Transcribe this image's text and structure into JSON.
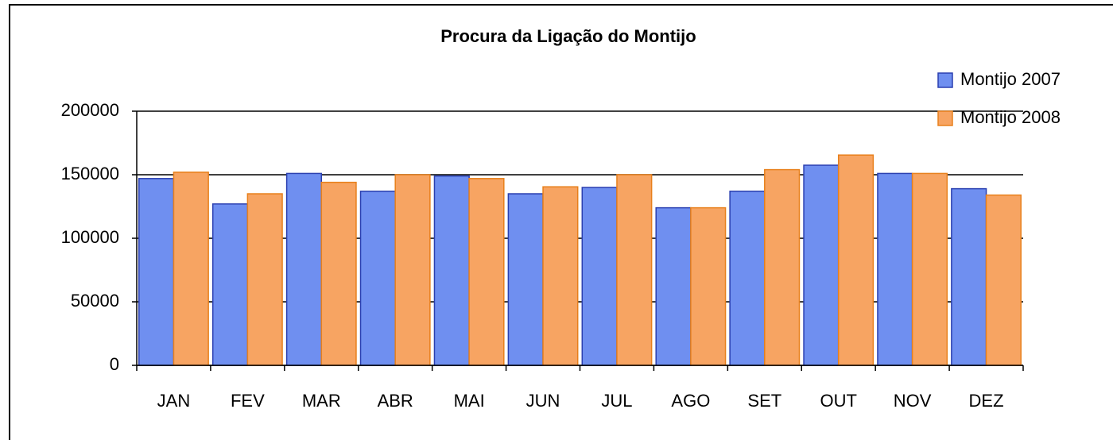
{
  "chart_data": {
    "type": "bar",
    "title": "Procura da Ligação do Montijo",
    "categories": [
      "JAN",
      "FEV",
      "MAR",
      "ABR",
      "MAI",
      "JUN",
      "JUL",
      "AGO",
      "SET",
      "OUT",
      "NOV",
      "DEZ"
    ],
    "series": [
      {
        "name": "Montijo 2007",
        "color": "#6f8ff0",
        "values": [
          147000,
          127000,
          151000,
          137000,
          149000,
          135000,
          140000,
          124000,
          137000,
          157500,
          151000,
          139000
        ]
      },
      {
        "name": "Montijo 2008",
        "color": "#f7a462",
        "values": [
          152000,
          135000,
          144000,
          150000,
          147000,
          140500,
          150000,
          124000,
          154000,
          165500,
          151000,
          134000
        ]
      }
    ],
    "ylim": [
      0,
      200000
    ],
    "yticks": [
      0,
      50000,
      100000,
      150000,
      200000
    ],
    "grid": true,
    "legend": "top-right"
  }
}
